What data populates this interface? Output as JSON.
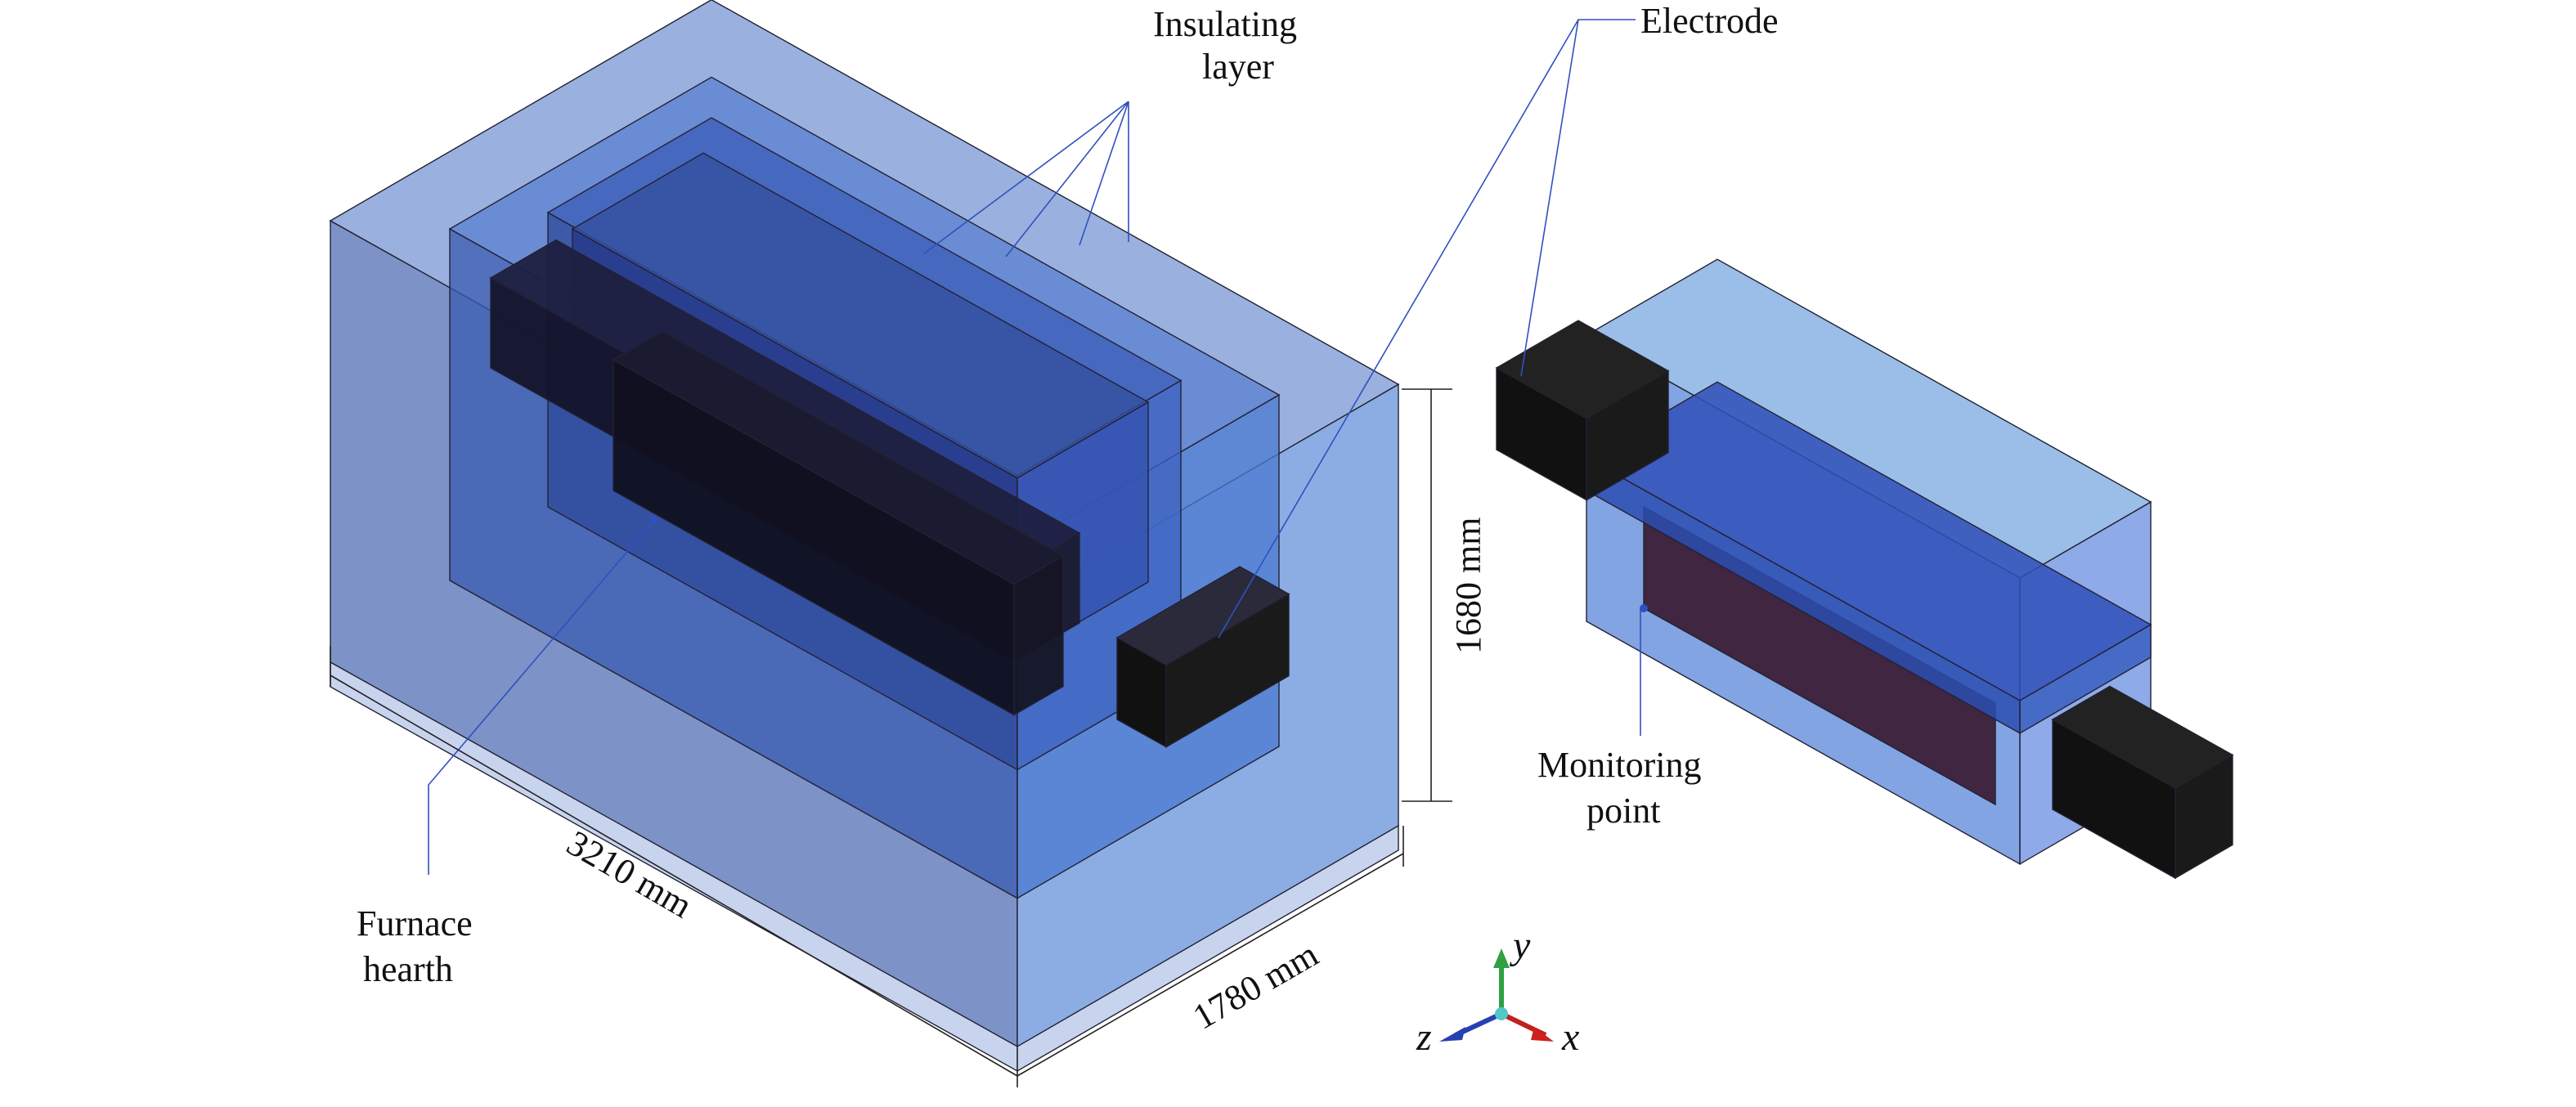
{
  "labels": {
    "insulating_layer": [
      "Insulating",
      "layer"
    ],
    "electrode": "Electrode",
    "furnace_hearth": [
      "Furnace",
      "hearth"
    ],
    "monitoring_point": [
      "Monitoring",
      "point"
    ]
  },
  "dimensions": {
    "height": "1680 mm",
    "length": "3210 mm",
    "width": "1780 mm"
  },
  "axes": {
    "x": "x",
    "y": "y",
    "z": "z"
  },
  "colors": {
    "insulation": "#4a6fc8",
    "electrode": "#111111",
    "monitoring_slab": "#5a1a2a",
    "axis_x": "#d02020",
    "axis_y": "#30a040",
    "axis_z": "#2840b0",
    "leader": "#3050c0"
  }
}
